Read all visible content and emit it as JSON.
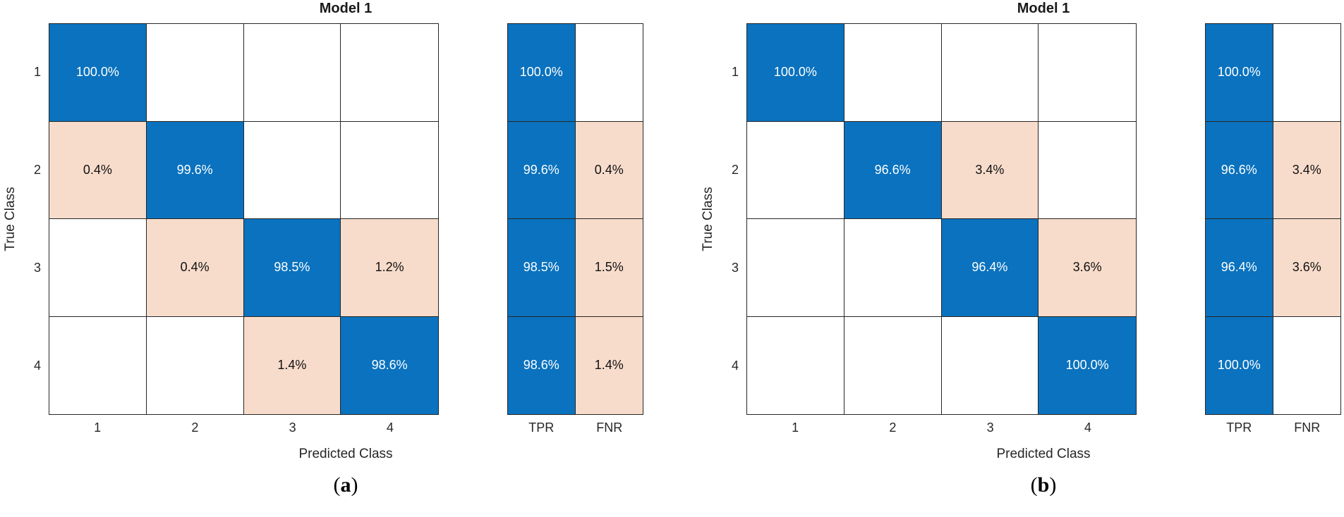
{
  "colors": {
    "diagonal_blue": "#0A72BE",
    "offdiagonal_pink": "#F8DCCB",
    "grid_line": "#262626",
    "cell_text_on_blue": "#FFFFFF",
    "cell_text_on_pink": "#111111"
  },
  "panels": [
    {
      "title": "Model 1",
      "xlabel": "Predicted Class",
      "ylabel": "True Class",
      "caption_open": "(",
      "caption_letter": "a",
      "caption_close": ")",
      "class_labels": [
        "1",
        "2",
        "3",
        "4"
      ],
      "summary_labels": [
        "TPR",
        "FNR"
      ],
      "matrix": [
        [
          "100.0%",
          "",
          "",
          ""
        ],
        [
          "0.4%",
          "99.6%",
          "",
          ""
        ],
        [
          "",
          "0.4%",
          "98.5%",
          "1.2%"
        ],
        [
          "",
          "",
          "1.4%",
          "98.6%"
        ]
      ],
      "tpr": [
        "100.0%",
        "99.6%",
        "98.5%",
        "98.6%"
      ],
      "fnr": [
        "",
        "0.4%",
        "1.5%",
        "1.4%"
      ]
    },
    {
      "title": "Model 1",
      "xlabel": "Predicted Class",
      "ylabel": "True Class",
      "caption_open": "(",
      "caption_letter": "b",
      "caption_close": ")",
      "class_labels": [
        "1",
        "2",
        "3",
        "4"
      ],
      "summary_labels": [
        "TPR",
        "FNR"
      ],
      "matrix": [
        [
          "100.0%",
          "",
          "",
          ""
        ],
        [
          "",
          "96.6%",
          "3.4%",
          ""
        ],
        [
          "",
          "",
          "96.4%",
          "3.6%"
        ],
        [
          "",
          "",
          "",
          "100.0%"
        ]
      ],
      "tpr": [
        "100.0%",
        "96.6%",
        "96.4%",
        "100.0%"
      ],
      "fnr": [
        "",
        "3.4%",
        "3.6%",
        ""
      ]
    }
  ],
  "chart_data": [
    {
      "type": "heatmap",
      "subtype": "confusion-matrix-row-normalized",
      "panel": "a",
      "title": "Model 1",
      "xlabel": "Predicted Class",
      "ylabel": "True Class",
      "x_categories": [
        "1",
        "2",
        "3",
        "4"
      ],
      "y_categories": [
        "1",
        "2",
        "3",
        "4"
      ],
      "values_percent": [
        [
          100.0,
          null,
          null,
          null
        ],
        [
          0.4,
          99.6,
          null,
          null
        ],
        [
          null,
          0.4,
          98.5,
          1.2
        ],
        [
          null,
          null,
          1.4,
          98.6
        ]
      ],
      "row_summary": {
        "TPR": [
          100.0,
          99.6,
          98.5,
          98.6
        ],
        "FNR": [
          null,
          0.4,
          1.5,
          1.4
        ]
      },
      "grid": true,
      "legend_position": "none"
    },
    {
      "type": "heatmap",
      "subtype": "confusion-matrix-row-normalized",
      "panel": "b",
      "title": "Model 1",
      "xlabel": "Predicted Class",
      "ylabel": "True Class",
      "x_categories": [
        "1",
        "2",
        "3",
        "4"
      ],
      "y_categories": [
        "1",
        "2",
        "3",
        "4"
      ],
      "values_percent": [
        [
          100.0,
          null,
          null,
          null
        ],
        [
          null,
          96.6,
          3.4,
          null
        ],
        [
          null,
          null,
          96.4,
          3.6
        ],
        [
          null,
          null,
          null,
          100.0
        ]
      ],
      "row_summary": {
        "TPR": [
          100.0,
          96.6,
          96.4,
          100.0
        ],
        "FNR": [
          null,
          3.4,
          3.6,
          null
        ]
      },
      "grid": true,
      "legend_position": "none"
    }
  ]
}
